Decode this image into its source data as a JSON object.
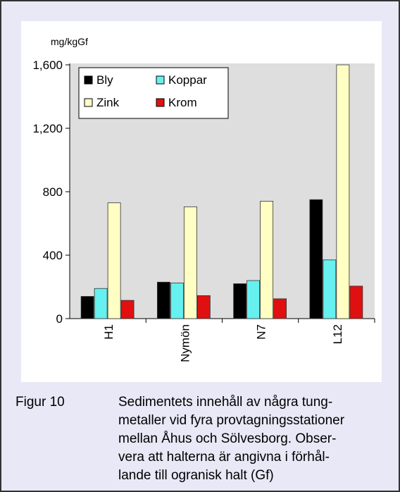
{
  "chart_data": {
    "type": "bar",
    "y_label": "mg/kgGf",
    "categories": [
      "H1",
      "Nymön",
      "N7",
      "L12"
    ],
    "series": [
      {
        "name": "Bly",
        "color": "#000000",
        "values": [
          140,
          230,
          220,
          750
        ]
      },
      {
        "name": "Koppar",
        "color": "#66f0f0",
        "values": [
          190,
          225,
          240,
          370
        ]
      },
      {
        "name": "Zink",
        "color": "#ffffc4",
        "values": [
          730,
          705,
          740,
          1600
        ]
      },
      {
        "name": "Krom",
        "color": "#e01010",
        "values": [
          115,
          145,
          125,
          205
        ]
      }
    ],
    "ylim": [
      0,
      1600
    ],
    "yticks": [
      0,
      400,
      800,
      {
        "value": 1200,
        "label": "1,200"
      },
      {
        "value": 1600,
        "label": "1,600"
      }
    ],
    "legend": "top-left"
  },
  "caption": {
    "label": "Figur 10",
    "lines": [
      "Sedimentets innehåll av några tung-",
      "metaller vid fyra provtagningsstationer",
      "mellan Åhus och Sölvesborg. Obser-",
      "vera att halterna är angivna i förhål-",
      "lande till ogranisk halt (Gf)"
    ]
  }
}
